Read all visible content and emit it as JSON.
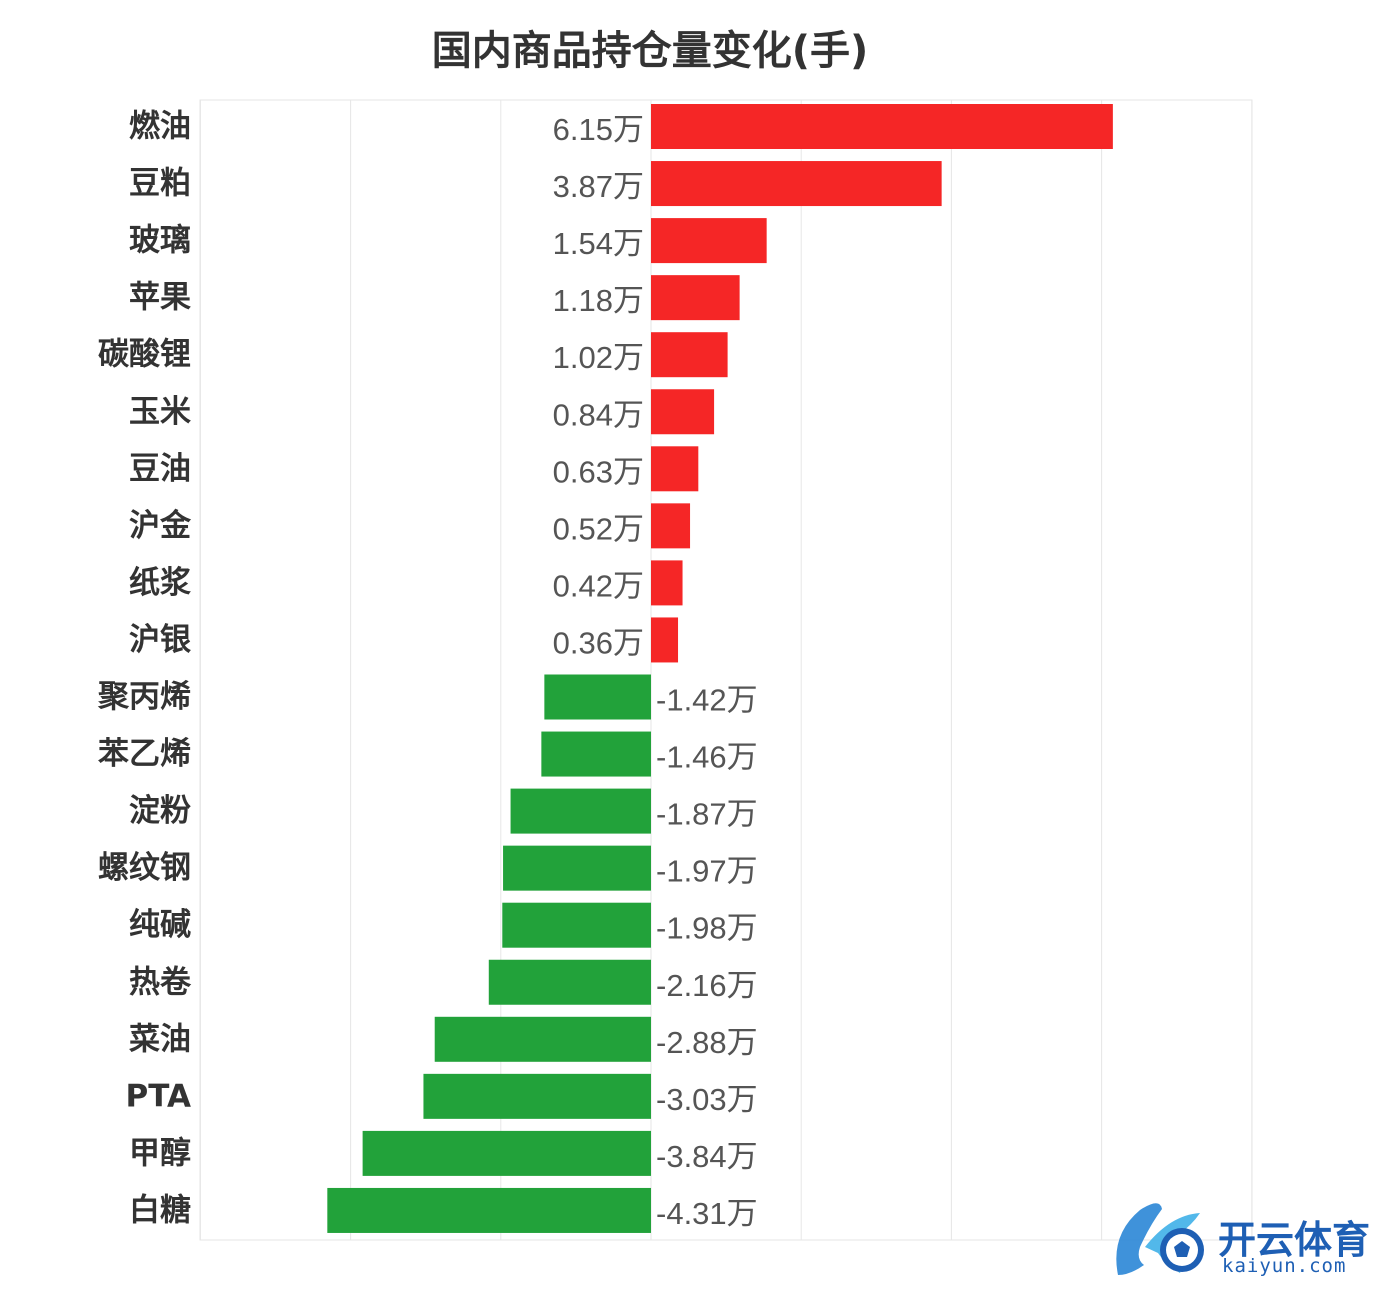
{
  "chart_data": {
    "type": "bar",
    "orientation": "horizontal",
    "title": "国内商品持仓量变化(手)",
    "unit": "万",
    "categories": [
      "燃油",
      "豆粕",
      "玻璃",
      "苹果",
      "碳酸锂",
      "玉米",
      "豆油",
      "沪金",
      "纸浆",
      "沪银",
      "聚丙烯",
      "苯乙烯",
      "淀粉",
      "螺纹钢",
      "纯碱",
      "热卷",
      "菜油",
      "PTA",
      "甲醇",
      "白糖"
    ],
    "values": [
      6.15,
      3.87,
      1.54,
      1.18,
      1.02,
      0.84,
      0.63,
      0.52,
      0.42,
      0.36,
      -1.42,
      -1.46,
      -1.87,
      -1.97,
      -1.98,
      -2.16,
      -2.88,
      -3.03,
      -3.84,
      -4.31
    ],
    "value_labels": [
      "6.15万",
      "3.87万",
      "1.54万",
      "1.18万",
      "1.02万",
      "0.84万",
      "0.63万",
      "0.52万",
      "0.42万",
      "0.36万",
      "-1.42万",
      "-1.46万",
      "-1.87万",
      "-1.97万",
      "-1.98万",
      "-2.16万",
      "-2.88万",
      "-3.03万",
      "-3.84万",
      "-4.31万"
    ],
    "xlim": [
      -6,
      8
    ],
    "grid": true,
    "colors": {
      "positive": "#f52626",
      "negative": "#22a23a",
      "grid": "#e6e6e6",
      "label": "#555555",
      "category": "#333333"
    }
  },
  "watermark": {
    "cn": "开云体育",
    "en": "kaiyun.com"
  }
}
